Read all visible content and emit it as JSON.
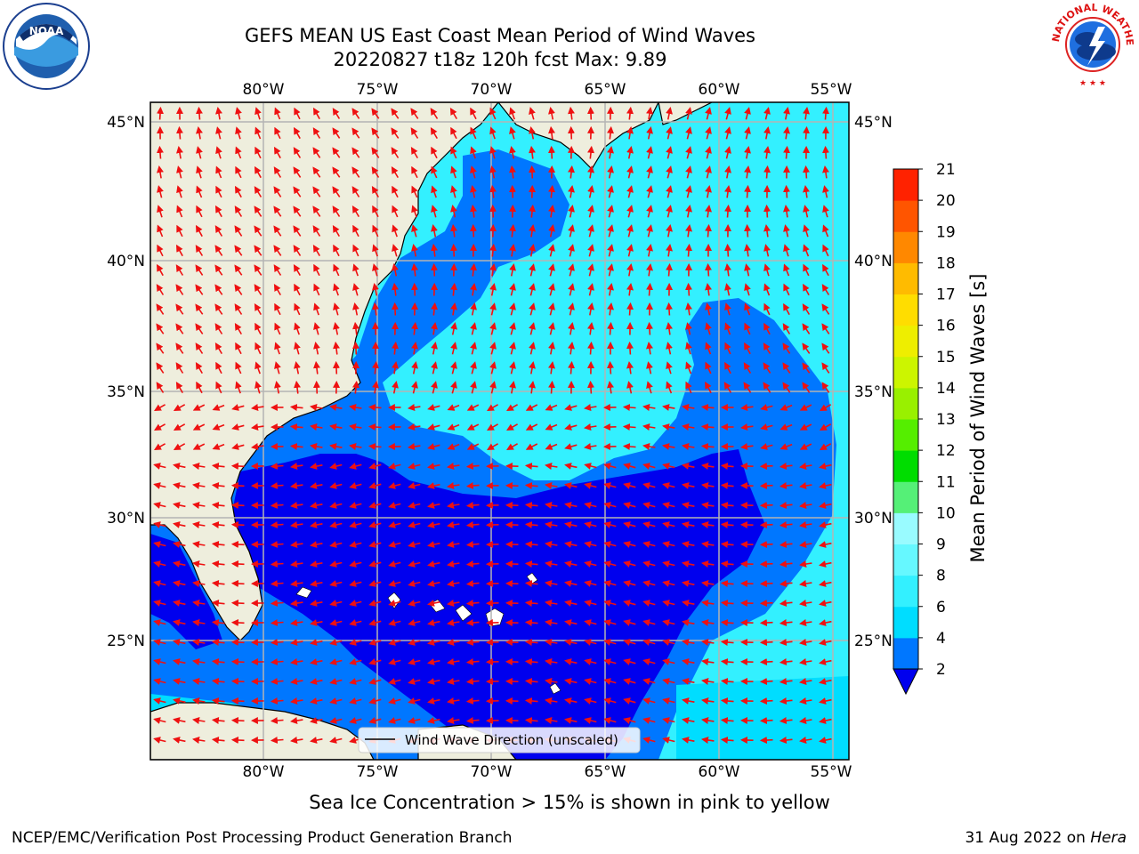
{
  "header": {
    "title_line1": "GEFS MEAN US East Coast Mean Period of Wind Waves",
    "title_line2": "20220827 t18z 120h fcst   Max: 9.89"
  },
  "logos": {
    "left": {
      "icon": "noaa-logo-icon",
      "text": "NOAA"
    },
    "right": {
      "icon": "national-weather-service-logo-icon",
      "text": "NATIONAL WEATHER SERVICE"
    }
  },
  "map": {
    "longitude_ticks": [
      "80°W",
      "75°W",
      "70°W",
      "65°W",
      "60°W",
      "55°W"
    ],
    "latitude_ticks": [
      "45°N",
      "40°N",
      "35°N",
      "30°N",
      "25°N"
    ],
    "legend_label": "Wind Wave Direction (unscaled)",
    "colors": {
      "land": "#eeeedd",
      "arrow": "#ee1111",
      "grid": "#b4b4b4"
    }
  },
  "colorbar": {
    "label": "Mean Period of Wind Waves [s]",
    "ticks": [
      "2",
      "4",
      "6",
      "8",
      "9",
      "10",
      "11",
      "12",
      "13",
      "14",
      "15",
      "16",
      "17",
      "18",
      "19",
      "20",
      "21"
    ],
    "colors": [
      "#0000ee",
      "#0077ff",
      "#00ddff",
      "#33f0ff",
      "#66f8ff",
      "#99fbff",
      "#55f077",
      "#00dd00",
      "#55ee00",
      "#99f000",
      "#ccf500",
      "#eeee00",
      "#ffdd00",
      "#ffbb00",
      "#ff8800",
      "#ff5500",
      "#ff2200",
      "#ff0000"
    ]
  },
  "footer": {
    "sea_ice_note": "Sea Ice Concentration > 15% is shown in pink to yellow",
    "branch": "NCEP/EMC/Verification Post Processing Product Generation Branch",
    "date": "31 Aug 2022 on",
    "host": "Hera"
  }
}
